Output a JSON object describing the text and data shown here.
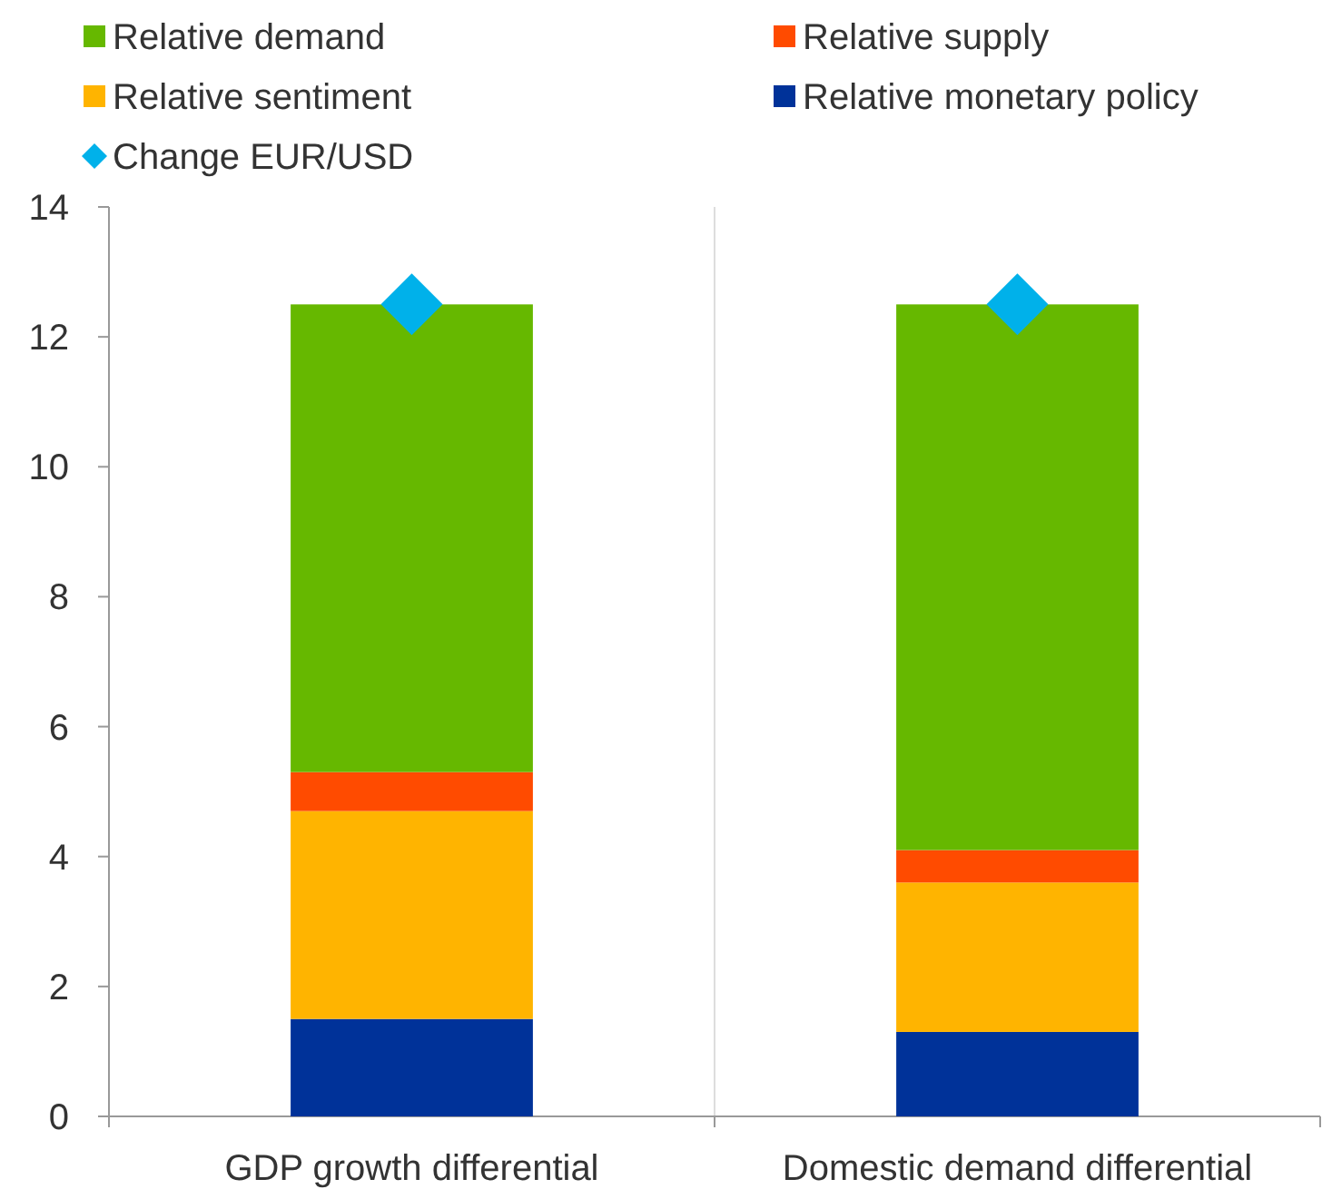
{
  "chart_data": {
    "type": "bar",
    "stacked": true,
    "categories": [
      "GDP growth differential",
      "Domestic demand differential"
    ],
    "series": [
      {
        "name": "Relative monetary policy",
        "color": "#003299",
        "values": [
          1.5,
          1.3
        ]
      },
      {
        "name": "Relative sentiment",
        "color": "#ffb400",
        "values": [
          3.2,
          2.3
        ]
      },
      {
        "name": "Relative supply",
        "color": "#ff4b00",
        "values": [
          0.6,
          0.5
        ]
      },
      {
        "name": "Relative demand",
        "color": "#66b800",
        "values": [
          7.2,
          8.4
        ]
      },
      {
        "name": "Change EUR/USD",
        "type": "scatter",
        "marker": "diamond",
        "color": "#00b1ea",
        "x": [
          "GDP growth differential",
          "Domestic demand differential"
        ],
        "values": [
          12.5,
          12.5
        ]
      }
    ],
    "ylim": [
      0,
      14
    ],
    "yticks": [
      0,
      2,
      4,
      6,
      8,
      10,
      12,
      14
    ],
    "grid": false,
    "legend": "top"
  }
}
